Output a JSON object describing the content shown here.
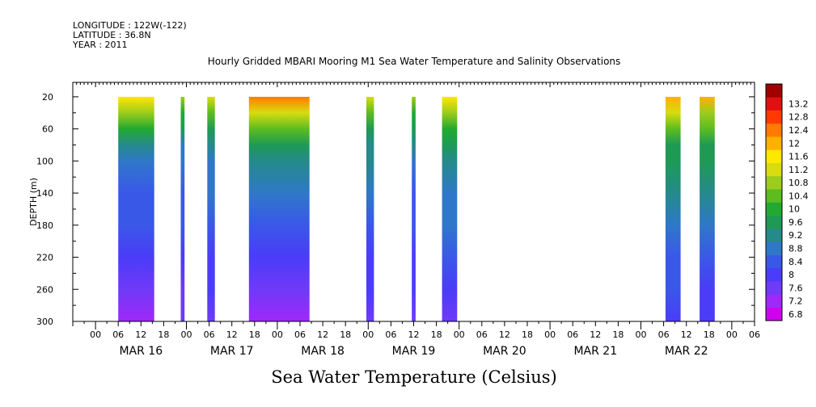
{
  "header": {
    "longitude": "LONGITUDE : 122W(-122)",
    "latitude": "LATITUDE : 36.8N",
    "year": "YEAR : 2011"
  },
  "chart_data": {
    "type": "heatmap",
    "title": "Hourly Gridded MBARI Mooring M1 Sea Water Temperature and Salinity Observations",
    "subtitle": "Sea Water Temperature (Celsius)",
    "ylabel": "DEPTH (m)",
    "xlabel": "",
    "x_units": "hours since 2011-03-16 00:00",
    "xlim": [
      -6,
      174
    ],
    "ylim": [
      300,
      2
    ],
    "y_ticks": [
      20,
      60,
      100,
      140,
      180,
      220,
      260,
      300
    ],
    "x_hour_tick_labels": [
      "00",
      "06",
      "12",
      "18"
    ],
    "month_labels": [
      {
        "hour": 12,
        "label": "MAR 16"
      },
      {
        "hour": 36,
        "label": "MAR 17"
      },
      {
        "hour": 60,
        "label": "MAR 18"
      },
      {
        "hour": 84,
        "label": "MAR 19"
      },
      {
        "hour": 108,
        "label": "MAR 20"
      },
      {
        "hour": 132,
        "label": "MAR 21"
      },
      {
        "hour": 156,
        "label": "MAR 22"
      }
    ],
    "colorbar": {
      "levels": [
        "6.8",
        "7.2",
        "7.6",
        "8",
        "8.4",
        "8.8",
        "9.2",
        "9.6",
        "10",
        "10.4",
        "10.8",
        "11.2",
        "11.6",
        "12",
        "12.4",
        "12.8",
        "13.2"
      ],
      "colors": [
        "#d000f0",
        "#a028f8",
        "#6f3af8",
        "#4a3cf8",
        "#3a58e8",
        "#2f78c8",
        "#258a8a",
        "#1e9a55",
        "#22aa30",
        "#5cbc20",
        "#9ccc1c",
        "#d8dc10",
        "#ffe800",
        "#ffb000",
        "#ff7a00",
        "#ff3a00",
        "#e01010",
        "#a00000"
      ]
    },
    "depth_profiles": [
      {
        "depth": 20,
        "temp": 11.6
      },
      {
        "depth": 40,
        "temp": 10.6
      },
      {
        "depth": 60,
        "temp": 9.8
      },
      {
        "depth": 80,
        "temp": 9.2
      },
      {
        "depth": 100,
        "temp": 8.9
      },
      {
        "depth": 140,
        "temp": 8.5
      },
      {
        "depth": 180,
        "temp": 8.2
      },
      {
        "depth": 220,
        "temp": 7.8
      },
      {
        "depth": 260,
        "temp": 7.5
      },
      {
        "depth": 300,
        "temp": 7.1
      }
    ],
    "series": [
      {
        "start_hour": 6,
        "end_hour": 15.5,
        "surface_temp": 11.4,
        "bottom_temp": 7.0
      },
      {
        "start_hour": 22.5,
        "end_hour": 23.5,
        "surface_temp": 10.6,
        "bottom_temp": 7.2
      },
      {
        "start_hour": 29.5,
        "end_hour": 31.5,
        "surface_temp": 11.0,
        "bottom_temp": 7.3
      },
      {
        "start_hour": 40.5,
        "end_hour": 56.5,
        "surface_temp": 12.0,
        "bottom_temp": 7.0
      },
      {
        "start_hour": 71.5,
        "end_hour": 73.5,
        "surface_temp": 10.9,
        "bottom_temp": 7.4
      },
      {
        "start_hour": 83.5,
        "end_hour": 84.5,
        "surface_temp": 10.4,
        "bottom_temp": 7.4
      },
      {
        "start_hour": 91.5,
        "end_hour": 95.5,
        "surface_temp": 11.5,
        "bottom_temp": 7.5
      },
      {
        "start_hour": 150.5,
        "end_hour": 154.5,
        "surface_temp": 11.7,
        "bottom_temp": 7.7
      },
      {
        "start_hour": 159.5,
        "end_hour": 163.5,
        "surface_temp": 11.7,
        "bottom_temp": 7.6
      }
    ]
  }
}
